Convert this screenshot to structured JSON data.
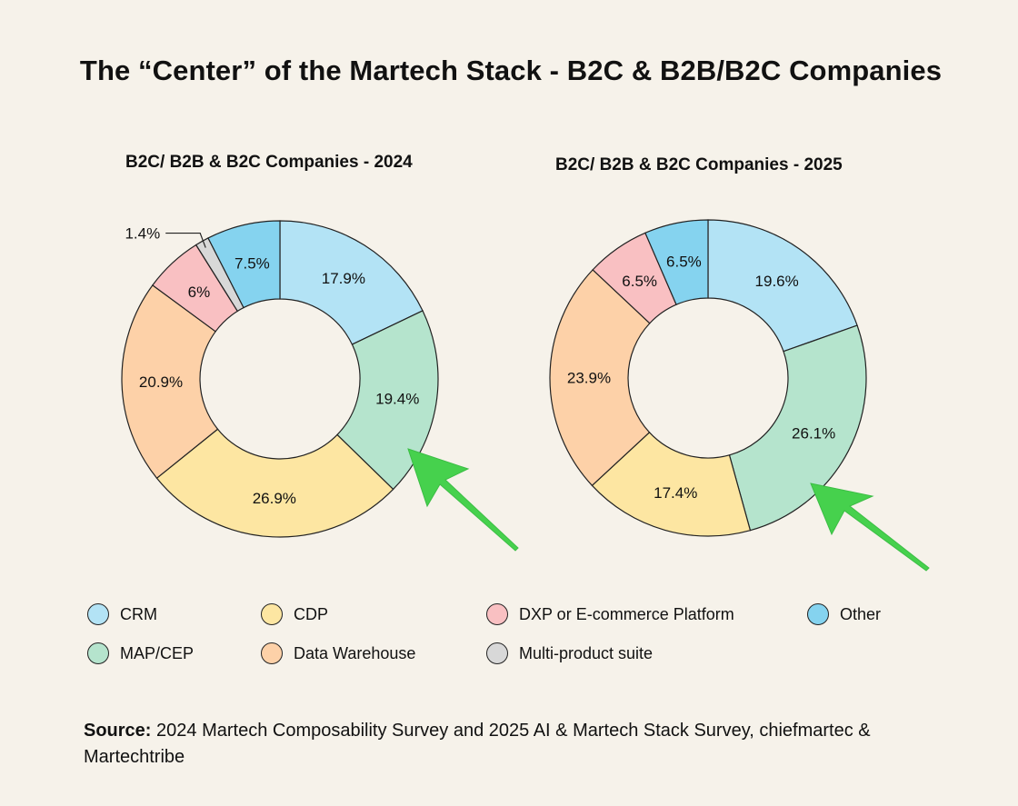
{
  "title": "The “Center” of the Martech Stack - B2C & B2B/B2C Companies",
  "categories": [
    {
      "key": "crm",
      "label": "CRM",
      "color": "#b3e3f5"
    },
    {
      "key": "map",
      "label": "MAP/CEP",
      "color": "#b5e4cd"
    },
    {
      "key": "cdp",
      "label": "CDP",
      "color": "#fde6a2"
    },
    {
      "key": "dw",
      "label": "Data Warehouse",
      "color": "#fdd1a8"
    },
    {
      "key": "dxp",
      "label": "DXP or E-commerce Platform",
      "color": "#f9c0c2"
    },
    {
      "key": "multi",
      "label": "Multi-product suite",
      "color": "#d8d8d8"
    },
    {
      "key": "other",
      "label": "Other",
      "color": "#85d3ef"
    }
  ],
  "chart_data": [
    {
      "type": "pie",
      "title": "B2C/ B2B & B2C Companies - 2024",
      "slices": [
        {
          "category": "crm",
          "value": 17.9,
          "label": "17.9%"
        },
        {
          "category": "map",
          "value": 19.4,
          "label": "19.4%"
        },
        {
          "category": "cdp",
          "value": 26.9,
          "label": "26.9%"
        },
        {
          "category": "dw",
          "value": 20.9,
          "label": "20.9%"
        },
        {
          "category": "dxp",
          "value": 6,
          "label": "6%"
        },
        {
          "category": "multi",
          "value": 1.4,
          "label": "1.4%"
        },
        {
          "category": "other",
          "value": 7.5,
          "label": "7.5%"
        }
      ]
    },
    {
      "type": "pie",
      "title": "B2C/ B2B & B2C Companies - 2025",
      "slices": [
        {
          "category": "crm",
          "value": 19.6,
          "label": "19.6%"
        },
        {
          "category": "map",
          "value": 26.1,
          "label": "26.1%"
        },
        {
          "category": "cdp",
          "value": 17.4,
          "label": "17.4%"
        },
        {
          "category": "dw",
          "value": 23.9,
          "label": "23.9%"
        },
        {
          "category": "dxp",
          "value": 6.5,
          "label": "6.5%"
        },
        {
          "category": "other",
          "value": 6.5,
          "label": "6.5%"
        }
      ]
    }
  ],
  "source": {
    "label": "Source:",
    "text": "2024 Martech Composability Survey and 2025 AI & Martech Stack Survey, chiefmartec & Martechtribe"
  }
}
